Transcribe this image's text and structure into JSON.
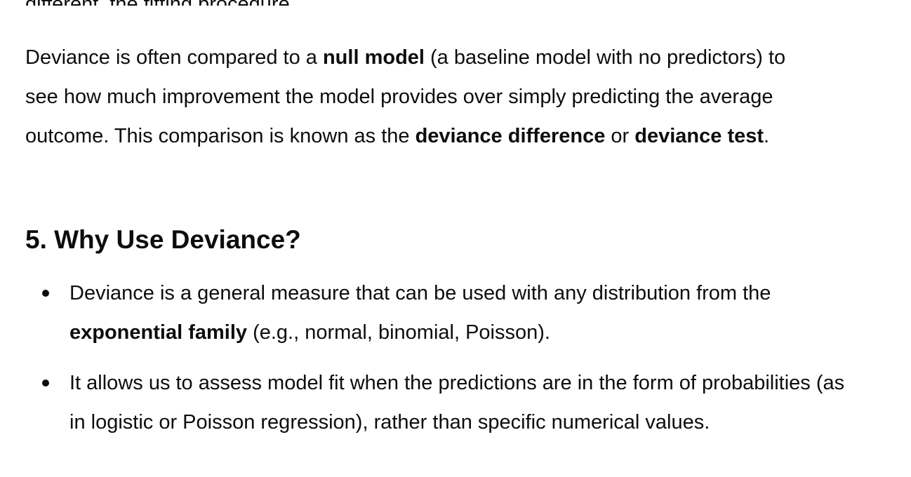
{
  "partial_line": "different, the fitting procedure",
  "paragraph": {
    "text_1": "Deviance is often compared to a ",
    "bold_1": "null model",
    "text_2": " (a baseline model with no predictors) to see how much improvement the model provides over simply predicting the average outcome. This comparison is known as the ",
    "bold_2": "deviance difference",
    "text_3": " or ",
    "bold_3": "deviance test",
    "text_4": "."
  },
  "section": {
    "heading": "5. Why Use Deviance?"
  },
  "bullets": [
    {
      "text_1": "Deviance is a general measure that can be used with any distribution from the ",
      "bold_1": "exponential family",
      "text_2": " (e.g., normal, binomial, Poisson)."
    },
    {
      "text_1": "It allows us to assess model fit when the predictions are in the form of probabilities (as in logistic or Poisson regression), rather than specific numerical values."
    }
  ]
}
